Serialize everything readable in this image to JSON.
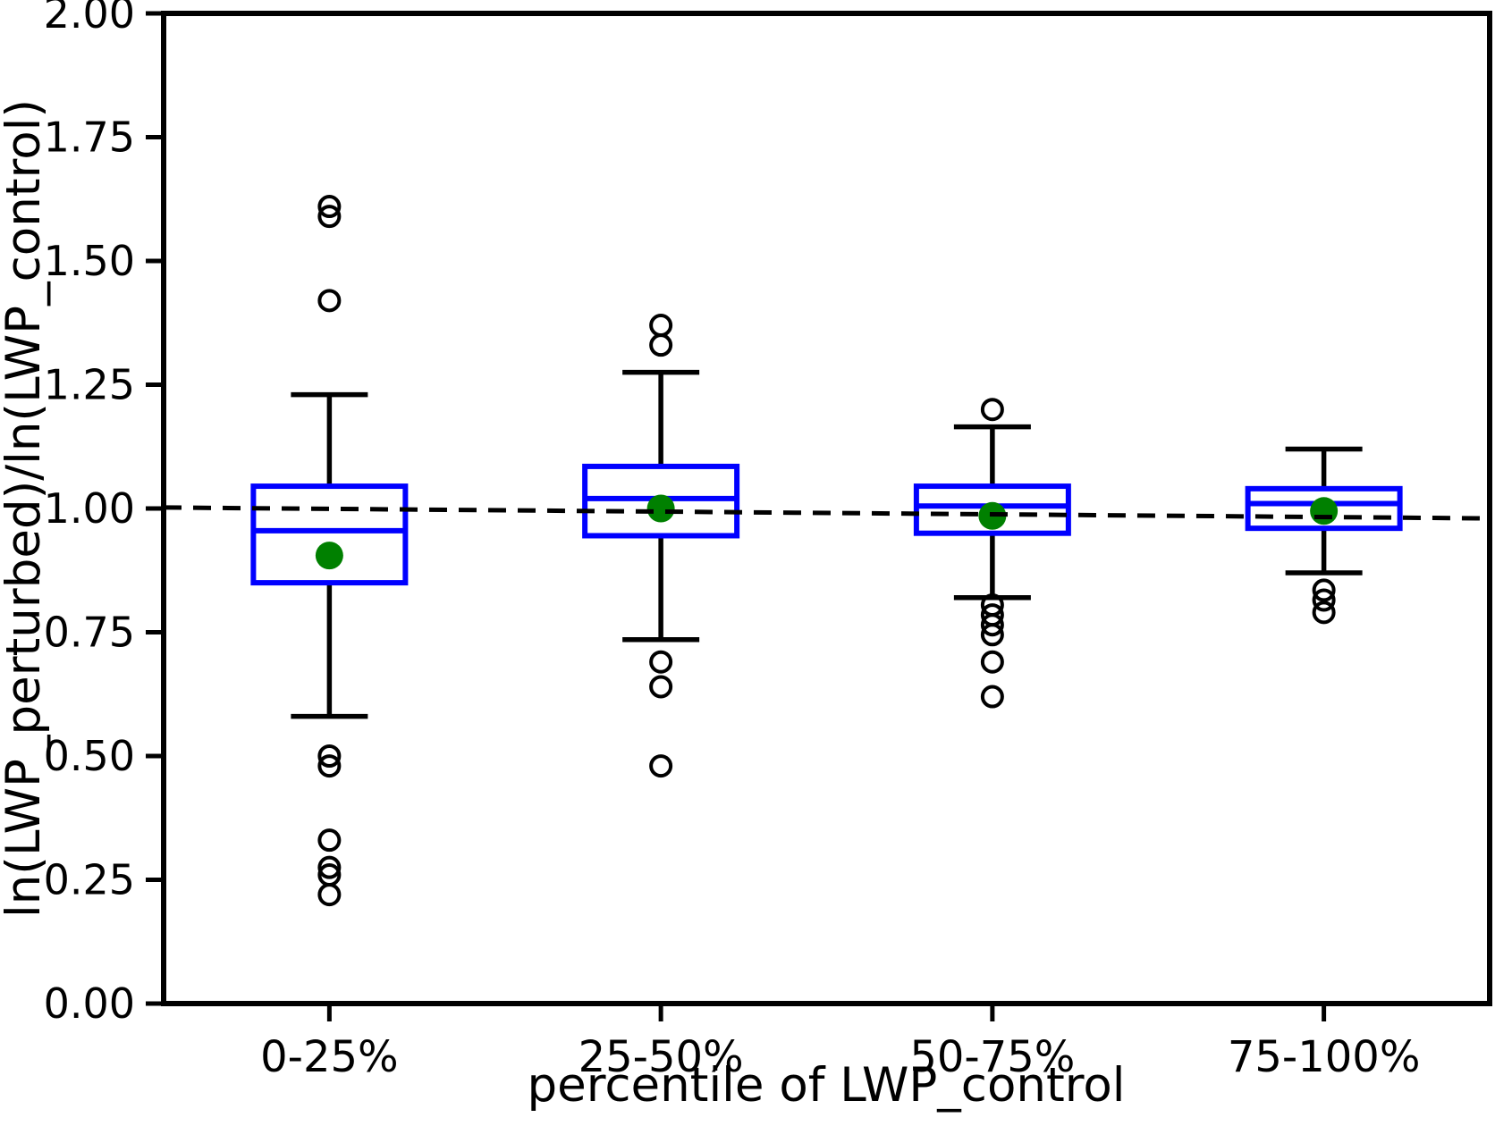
{
  "chart_data": {
    "type": "boxplot",
    "title": "",
    "xlabel": "percentile of LWP_control",
    "ylabel": "ln(LWP_perturbed)/ln(LWP_control)",
    "categories": [
      "0-25%",
      "25-50%",
      "50-75%",
      "75-100%"
    ],
    "ylim": [
      0.0,
      2.0
    ],
    "yticks": [
      0.0,
      0.25,
      0.5,
      0.75,
      1.0,
      1.25,
      1.5,
      1.75,
      2.0
    ],
    "ytick_labels": [
      "0.00",
      "0.25",
      "0.50",
      "0.75",
      "1.00",
      "1.25",
      "1.50",
      "1.75",
      "2.00"
    ],
    "grid": false,
    "legend": null,
    "reference_line": {
      "style": "dashed",
      "color": "#000000",
      "y_left": 1.002,
      "y_right": 0.98,
      "meaning": "ratio = 1 reference"
    },
    "colors": {
      "box": "#0000ff",
      "median": "#0000ff",
      "mean_marker": "#008000",
      "whisker": "#000000",
      "outlier": "#000000"
    },
    "series": [
      {
        "category": "0-25%",
        "whisker_low": 0.58,
        "q1": 0.85,
        "median": 0.955,
        "q3": 1.045,
        "whisker_high": 1.23,
        "mean": 0.905,
        "outliers": [
          1.61,
          1.59,
          1.42,
          0.5,
          0.48,
          0.33,
          0.275,
          0.26,
          0.22
        ]
      },
      {
        "category": "25-50%",
        "whisker_low": 0.735,
        "q1": 0.945,
        "median": 1.02,
        "q3": 1.085,
        "whisker_high": 1.275,
        "mean": 1.0,
        "outliers": [
          1.37,
          1.33,
          0.69,
          0.64,
          0.48
        ]
      },
      {
        "category": "50-75%",
        "whisker_low": 0.82,
        "q1": 0.95,
        "median": 1.005,
        "q3": 1.045,
        "whisker_high": 1.165,
        "mean": 0.985,
        "outliers": [
          1.2,
          0.805,
          0.785,
          0.765,
          0.745,
          0.69,
          0.62
        ]
      },
      {
        "category": "75-100%",
        "whisker_low": 0.87,
        "q1": 0.96,
        "median": 1.01,
        "q3": 1.04,
        "whisker_high": 1.12,
        "mean": 0.995,
        "outliers": [
          0.835,
          0.815,
          0.79
        ]
      }
    ]
  }
}
